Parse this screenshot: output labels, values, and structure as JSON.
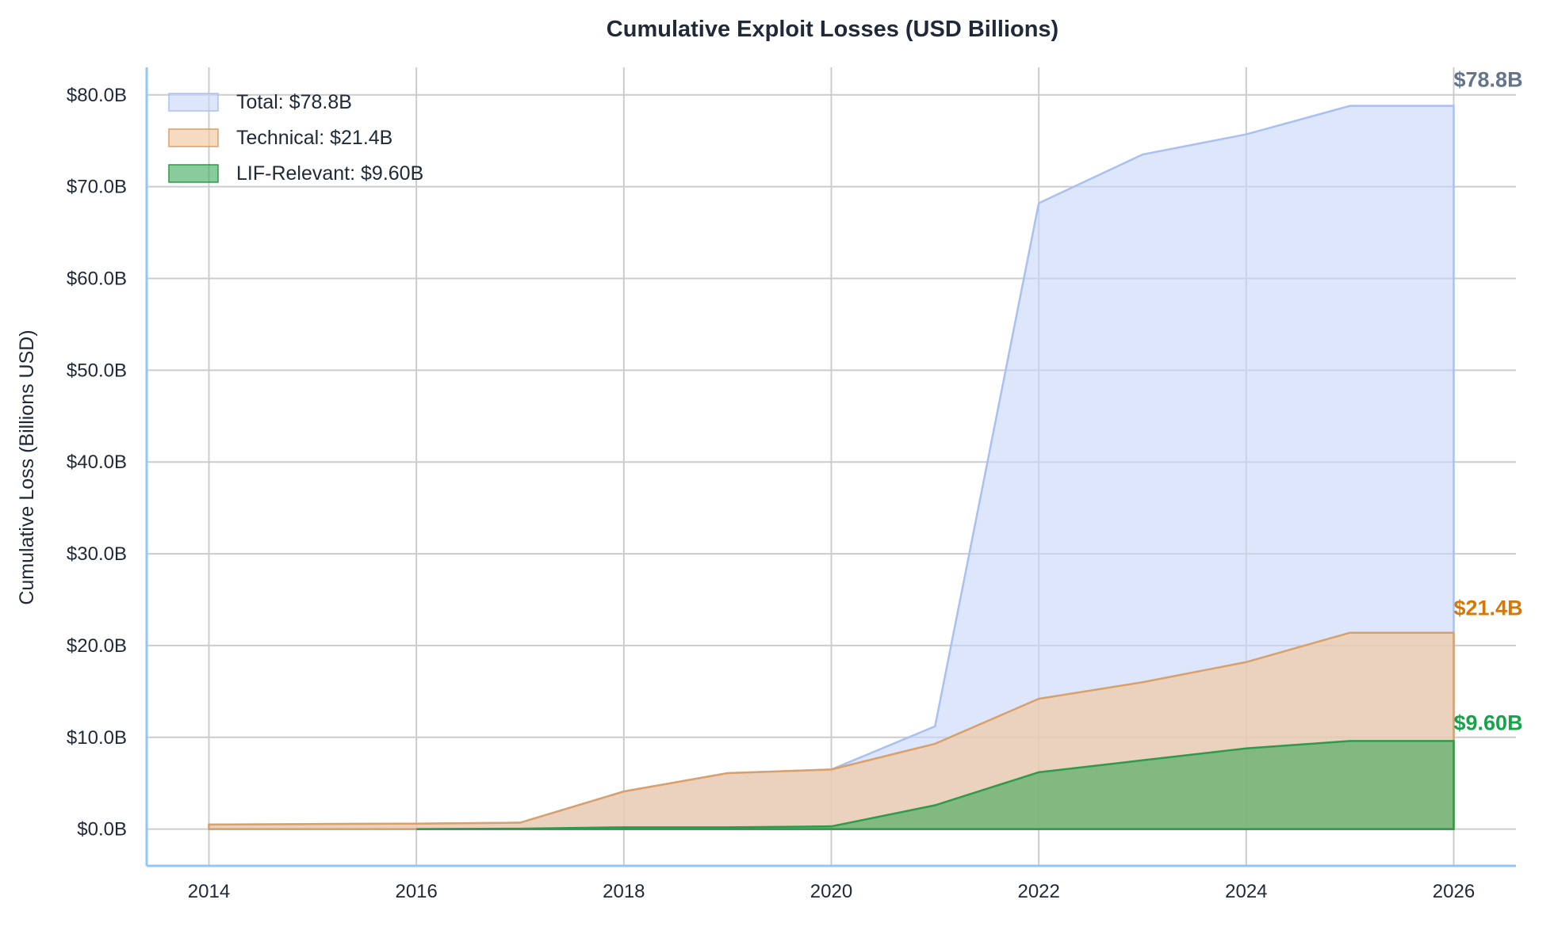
{
  "chart_data": {
    "type": "area",
    "title": "Cumulative Exploit Losses (USD Billions)",
    "xlabel": "",
    "ylabel": "Cumulative Loss (Billions USD)",
    "x_ticks": [
      "2014",
      "2016",
      "2018",
      "2020",
      "2022",
      "2024",
      "2026"
    ],
    "y_ticks": [
      "$0.0B",
      "$10.0B",
      "$20.0B",
      "$30.0B",
      "$40.0B",
      "$50.0B",
      "$60.0B",
      "$70.0B",
      "$80.0B"
    ],
    "xlim": [
      2013.4,
      2026.6
    ],
    "ylim": [
      -4,
      83
    ],
    "grid": true,
    "legend_position": "top-left",
    "series": [
      {
        "name": "Total: $78.8B",
        "color": "#c7d6f7",
        "edge": "#a9c0f2",
        "end_label": "$78.8B",
        "end_label_color": "#64748b",
        "x": [
          2014,
          2015,
          2016,
          2017,
          2018,
          2019,
          2020,
          2021,
          2022,
          2023,
          2024,
          2025,
          2026
        ],
        "values": [
          0.5,
          0.55,
          0.6,
          0.7,
          4.1,
          6.1,
          6.5,
          11.2,
          68.2,
          73.5,
          75.7,
          78.8,
          78.8
        ]
      },
      {
        "name": "Technical: $21.4B",
        "color": "#f3c89e",
        "edge": "#d9a06a",
        "end_label": "$21.4B",
        "end_label_color": "#d97706",
        "x": [
          2014,
          2015,
          2016,
          2017,
          2018,
          2019,
          2020,
          2021,
          2022,
          2023,
          2024,
          2025,
          2026
        ],
        "values": [
          0.5,
          0.55,
          0.6,
          0.7,
          4.1,
          6.1,
          6.5,
          9.3,
          14.2,
          16.0,
          18.2,
          21.4,
          21.4
        ]
      },
      {
        "name": "LIF-Relevant: $9.60B",
        "color": "#3aa856",
        "edge": "#2f9a4b",
        "end_label": "$9.60B",
        "end_label_color": "#16a34a",
        "x": [
          2016,
          2017,
          2018,
          2019,
          2020,
          2021,
          2022,
          2023,
          2024,
          2025,
          2026
        ],
        "values": [
          0.0,
          0.05,
          0.2,
          0.2,
          0.3,
          2.6,
          6.2,
          7.5,
          8.8,
          9.6,
          9.6
        ]
      }
    ]
  }
}
